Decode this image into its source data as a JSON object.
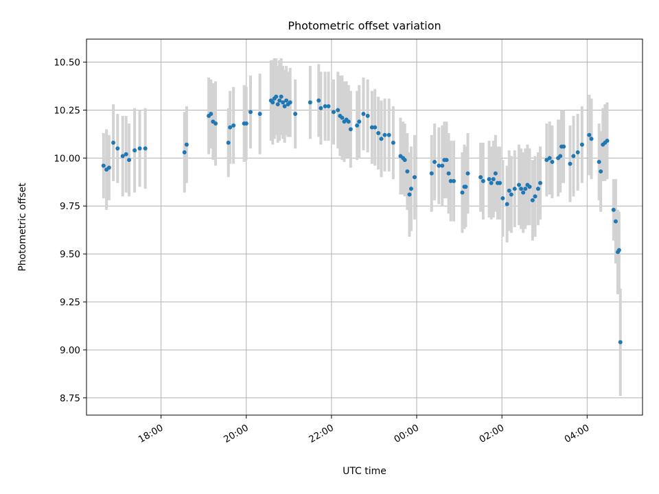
{
  "chart_data": {
    "type": "scatter",
    "title": "Photometric offset variation",
    "xlabel": "UTC time",
    "ylabel": "Photometric offset",
    "x_unit": "hours (UTC, continuing past midnight)",
    "xlim": [
      16.25,
      29.3
    ],
    "ylim": [
      8.66,
      10.62
    ],
    "grid": true,
    "xticks": [
      {
        "value": 18,
        "label": "18:00"
      },
      {
        "value": 20,
        "label": "20:00"
      },
      {
        "value": 22,
        "label": "22:00"
      },
      {
        "value": 24,
        "label": "00:00"
      },
      {
        "value": 26,
        "label": "02:00"
      },
      {
        "value": 28,
        "label": "04:00"
      }
    ],
    "yticks": [
      {
        "value": 8.75,
        "label": "8.75"
      },
      {
        "value": 9.0,
        "label": "9.00"
      },
      {
        "value": 9.25,
        "label": "9.25"
      },
      {
        "value": 9.5,
        "label": "9.50"
      },
      {
        "value": 9.75,
        "label": "9.75"
      },
      {
        "value": 10.0,
        "label": "10.00"
      },
      {
        "value": 10.25,
        "label": "10.25"
      },
      {
        "value": 10.5,
        "label": "10.50"
      }
    ],
    "colors": {
      "point": "#1f77b4",
      "errorbar": "#d3d3d3",
      "grid": "#b0b0b0"
    },
    "points": [
      [
        16.65,
        9.96,
        0.17
      ],
      [
        16.72,
        9.94,
        0.21
      ],
      [
        16.78,
        9.95,
        0.17
      ],
      [
        16.88,
        10.08,
        0.2
      ],
      [
        16.98,
        10.05,
        0.18
      ],
      [
        17.1,
        10.01,
        0.21
      ],
      [
        17.18,
        10.02,
        0.2
      ],
      [
        17.25,
        9.99,
        0.19
      ],
      [
        17.38,
        10.04,
        0.22
      ],
      [
        17.5,
        10.05,
        0.2
      ],
      [
        17.63,
        10.05,
        0.21
      ],
      [
        18.55,
        10.03,
        0.21
      ],
      [
        18.6,
        10.07,
        0.2
      ],
      [
        19.12,
        10.22,
        0.2
      ],
      [
        19.17,
        10.23,
        0.18
      ],
      [
        19.22,
        10.19,
        0.2
      ],
      [
        19.28,
        10.18,
        0.22
      ],
      [
        19.58,
        10.08,
        0.18
      ],
      [
        19.62,
        10.16,
        0.19
      ],
      [
        19.7,
        10.17,
        0.2
      ],
      [
        19.95,
        10.18,
        0.2
      ],
      [
        20.0,
        10.18,
        0.19
      ],
      [
        20.1,
        10.24,
        0.19
      ],
      [
        20.32,
        10.23,
        0.21
      ],
      [
        20.58,
        10.3,
        0.21
      ],
      [
        20.62,
        10.29,
        0.22
      ],
      [
        20.66,
        10.31,
        0.21
      ],
      [
        20.7,
        10.32,
        0.2
      ],
      [
        20.74,
        10.28,
        0.2
      ],
      [
        20.78,
        10.3,
        0.21
      ],
      [
        20.82,
        10.32,
        0.2
      ],
      [
        20.86,
        10.29,
        0.19
      ],
      [
        20.9,
        10.27,
        0.19
      ],
      [
        20.94,
        10.3,
        0.18
      ],
      [
        20.98,
        10.28,
        0.17
      ],
      [
        21.03,
        10.29,
        0.18
      ],
      [
        21.15,
        10.23,
        0.18
      ],
      [
        21.5,
        10.29,
        0.19
      ],
      [
        21.7,
        10.3,
        0.19
      ],
      [
        21.75,
        10.26,
        0.19
      ],
      [
        21.85,
        10.27,
        0.18
      ],
      [
        21.93,
        10.27,
        0.18
      ],
      [
        22.05,
        10.24,
        0.17
      ],
      [
        22.15,
        10.25,
        0.2
      ],
      [
        22.2,
        10.22,
        0.21
      ],
      [
        22.25,
        10.21,
        0.22
      ],
      [
        22.3,
        10.19,
        0.21
      ],
      [
        22.35,
        10.2,
        0.2
      ],
      [
        22.4,
        10.19,
        0.19
      ],
      [
        22.45,
        10.15,
        0.2
      ],
      [
        22.6,
        10.17,
        0.18
      ],
      [
        22.65,
        10.19,
        0.19
      ],
      [
        22.75,
        10.23,
        0.19
      ],
      [
        22.85,
        10.22,
        0.19
      ],
      [
        22.95,
        10.16,
        0.19
      ],
      [
        23.02,
        10.16,
        0.2
      ],
      [
        23.1,
        10.13,
        0.19
      ],
      [
        23.17,
        10.1,
        0.2
      ],
      [
        23.25,
        10.12,
        0.19
      ],
      [
        23.35,
        10.12,
        0.19
      ],
      [
        23.45,
        10.08,
        0.19
      ],
      [
        23.62,
        10.01,
        0.2
      ],
      [
        23.68,
        10.0,
        0.19
      ],
      [
        23.72,
        9.99,
        0.19
      ],
      [
        23.78,
        9.93,
        0.2
      ],
      [
        23.83,
        9.81,
        0.22
      ],
      [
        23.87,
        9.84,
        0.22
      ],
      [
        23.95,
        9.9,
        0.22
      ],
      [
        24.35,
        9.92,
        0.2
      ],
      [
        24.42,
        9.98,
        0.2
      ],
      [
        24.52,
        9.96,
        0.2
      ],
      [
        24.6,
        9.96,
        0.21
      ],
      [
        24.65,
        9.99,
        0.2
      ],
      [
        24.7,
        9.99,
        0.2
      ],
      [
        24.75,
        9.92,
        0.21
      ],
      [
        24.8,
        9.88,
        0.21
      ],
      [
        24.87,
        9.88,
        0.21
      ],
      [
        25.07,
        9.82,
        0.21
      ],
      [
        25.12,
        9.85,
        0.22
      ],
      [
        25.15,
        9.85,
        0.21
      ],
      [
        25.2,
        9.92,
        0.21
      ],
      [
        25.5,
        9.9,
        0.18
      ],
      [
        25.56,
        9.88,
        0.2
      ],
      [
        25.7,
        9.89,
        0.2
      ],
      [
        25.75,
        9.87,
        0.19
      ],
      [
        25.8,
        9.89,
        0.2
      ],
      [
        25.85,
        9.92,
        0.2
      ],
      [
        25.9,
        9.87,
        0.19
      ],
      [
        25.95,
        9.87,
        0.19
      ],
      [
        26.02,
        9.79,
        0.2
      ],
      [
        26.12,
        9.76,
        0.2
      ],
      [
        26.17,
        9.83,
        0.21
      ],
      [
        26.22,
        9.81,
        0.2
      ],
      [
        26.3,
        9.84,
        0.2
      ],
      [
        26.4,
        9.86,
        0.21
      ],
      [
        26.45,
        9.84,
        0.21
      ],
      [
        26.5,
        9.82,
        0.21
      ],
      [
        26.55,
        9.84,
        0.21
      ],
      [
        26.6,
        9.86,
        0.21
      ],
      [
        26.65,
        9.85,
        0.2
      ],
      [
        26.72,
        9.78,
        0.21
      ],
      [
        26.78,
        9.8,
        0.21
      ],
      [
        26.85,
        9.84,
        0.19
      ],
      [
        26.9,
        9.87,
        0.19
      ],
      [
        27.05,
        9.99,
        0.19
      ],
      [
        27.12,
        10.0,
        0.19
      ],
      [
        27.18,
        9.98,
        0.19
      ],
      [
        27.32,
        10.0,
        0.2
      ],
      [
        27.37,
        10.01,
        0.19
      ],
      [
        27.4,
        10.06,
        0.19
      ],
      [
        27.45,
        10.06,
        0.19
      ],
      [
        27.6,
        9.97,
        0.2
      ],
      [
        27.68,
        10.01,
        0.21
      ],
      [
        27.78,
        10.03,
        0.2
      ],
      [
        27.88,
        10.07,
        0.2
      ],
      [
        28.05,
        10.12,
        0.21
      ],
      [
        28.1,
        10.1,
        0.21
      ],
      [
        28.28,
        9.98,
        0.2
      ],
      [
        28.32,
        9.93,
        0.21
      ],
      [
        28.37,
        10.07,
        0.19
      ],
      [
        28.42,
        10.08,
        0.2
      ],
      [
        28.47,
        10.09,
        0.2
      ],
      [
        28.62,
        9.73,
        0.16
      ],
      [
        28.67,
        9.67,
        0.22
      ],
      [
        28.72,
        9.51,
        0.22
      ],
      [
        28.75,
        9.52,
        0.2
      ],
      [
        28.78,
        9.04,
        0.28
      ]
    ]
  }
}
